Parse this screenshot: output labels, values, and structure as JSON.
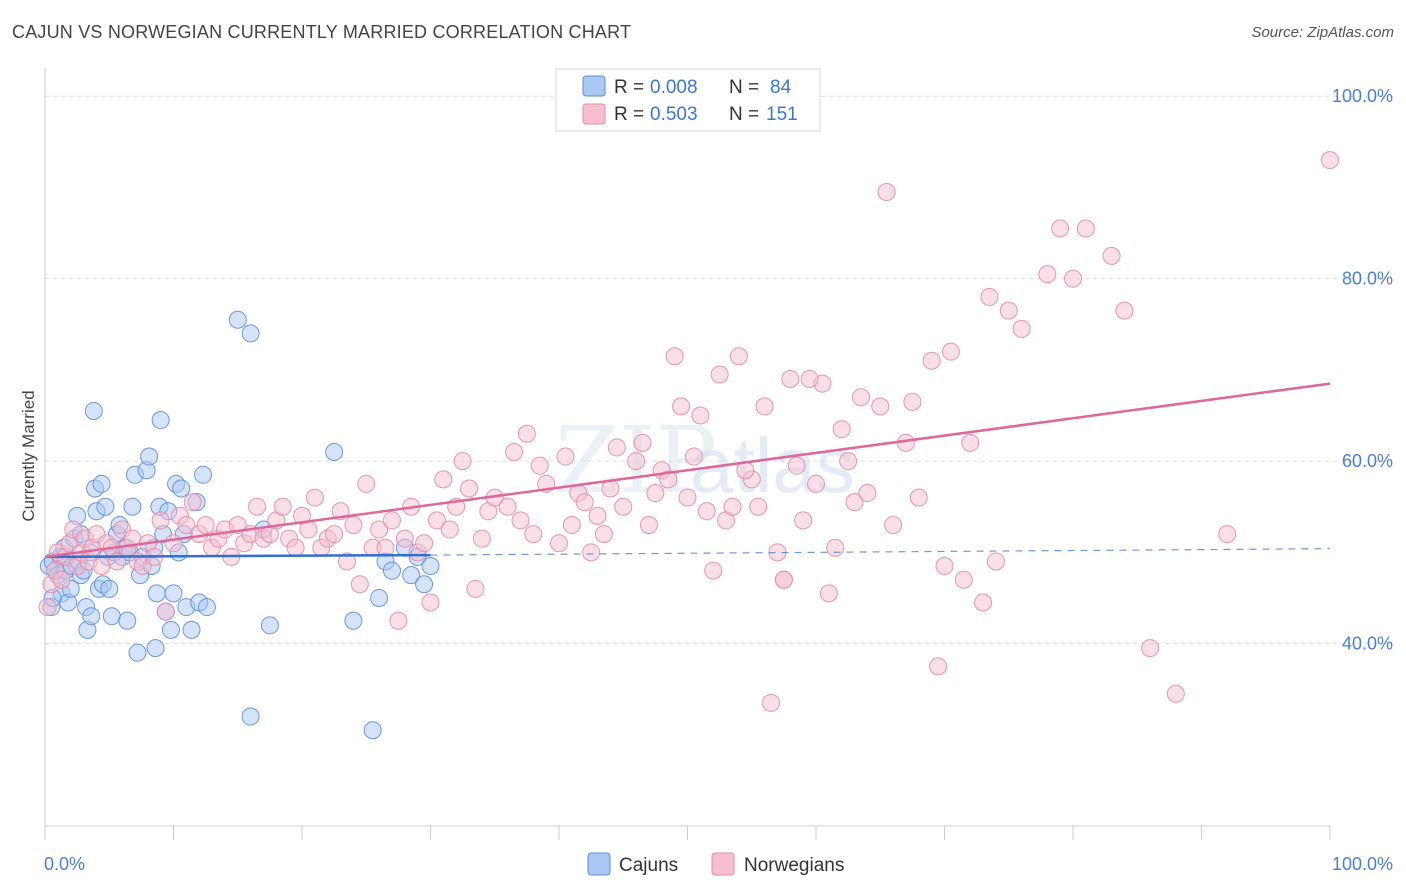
{
  "title": "CAJUN VS NORWEGIAN CURRENTLY MARRIED CORRELATION CHART",
  "source": "Source: ZipAtlas.com",
  "watermark": {
    "zip": "ZIP",
    "atlas": "atlas"
  },
  "colors": {
    "cajun_fill": "#a9c8f3",
    "cajun_stroke": "#5b8fd6",
    "cajun_line": "#2f6fd0",
    "norwegian_fill": "#f6bfd0",
    "norwegian_stroke": "#e58aa8",
    "norwegian_line": "#e0679a",
    "axis_label": "#4a7fd0",
    "grid": "#dddddd"
  },
  "legend": {
    "rows": [
      {
        "r_label": "R =",
        "r_value": "0.008",
        "n_label": "N =",
        "n_value": "84"
      },
      {
        "r_label": "R =",
        "r_value": "0.503",
        "n_label": "N =",
        "n_value": "151"
      }
    ]
  },
  "chart_data": {
    "type": "scatter",
    "title": "CAJUN VS NORWEGIAN CURRENTLY MARRIED CORRELATION CHART",
    "xlabel": "",
    "ylabel": "Currently Married",
    "xlim": [
      0,
      100
    ],
    "ylim": [
      20,
      102
    ],
    "x_tick_labels": [
      "0.0%",
      "100.0%"
    ],
    "y_ticks": [
      {
        "value": 40,
        "label": "40.0%"
      },
      {
        "value": 60,
        "label": "60.0%"
      },
      {
        "value": 80,
        "label": "80.0%"
      },
      {
        "value": 100,
        "label": "100.0%"
      }
    ],
    "grid": true,
    "legend_position": "top-center",
    "series": [
      {
        "name": "Cajuns",
        "r": 0.008,
        "n": 84,
        "trend": {
          "x0": 0,
          "y0": 49.5,
          "x1": 30,
          "y1": 49.7,
          "dashed_to_x": 100,
          "dashed_to_y": 50.4
        },
        "points": [
          [
            0.3,
            48.5
          ],
          [
            0.5,
            44.0
          ],
          [
            0.6,
            49.0
          ],
          [
            0.8,
            48.0
          ],
          [
            1.0,
            47.5
          ],
          [
            1.2,
            49.5
          ],
          [
            1.3,
            45.5
          ],
          [
            1.5,
            50.5
          ],
          [
            1.6,
            48.0
          ],
          [
            1.8,
            44.5
          ],
          [
            2.0,
            46.0
          ],
          [
            2.1,
            48.5
          ],
          [
            2.3,
            51.5
          ],
          [
            2.5,
            54.0
          ],
          [
            2.6,
            49.0
          ],
          [
            2.8,
            47.5
          ],
          [
            3.0,
            48.0
          ],
          [
            3.2,
            44.0
          ],
          [
            3.3,
            41.5
          ],
          [
            3.5,
            50.0
          ],
          [
            3.6,
            43.0
          ],
          [
            3.8,
            65.5
          ],
          [
            3.9,
            57.0
          ],
          [
            4.0,
            54.5
          ],
          [
            4.2,
            46.0
          ],
          [
            4.4,
            57.5
          ],
          [
            4.5,
            46.5
          ],
          [
            4.7,
            55.0
          ],
          [
            4.9,
            49.5
          ],
          [
            5.0,
            46.0
          ],
          [
            5.2,
            43.0
          ],
          [
            5.4,
            50.0
          ],
          [
            5.6,
            52.0
          ],
          [
            5.8,
            53.0
          ],
          [
            6.0,
            49.5
          ],
          [
            6.2,
            50.5
          ],
          [
            6.4,
            42.5
          ],
          [
            6.6,
            50.0
          ],
          [
            6.8,
            55.0
          ],
          [
            7.0,
            58.5
          ],
          [
            7.2,
            39.0
          ],
          [
            7.4,
            47.5
          ],
          [
            7.6,
            49.5
          ],
          [
            7.9,
            59.0
          ],
          [
            8.1,
            60.5
          ],
          [
            8.3,
            48.5
          ],
          [
            8.5,
            50.5
          ],
          [
            8.6,
            39.5
          ],
          [
            8.7,
            45.5
          ],
          [
            8.9,
            55.0
          ],
          [
            9.0,
            64.5
          ],
          [
            9.2,
            52.0
          ],
          [
            9.4,
            43.5
          ],
          [
            9.6,
            54.5
          ],
          [
            9.8,
            41.5
          ],
          [
            10.0,
            45.5
          ],
          [
            10.2,
            57.5
          ],
          [
            10.4,
            50.0
          ],
          [
            10.6,
            57.0
          ],
          [
            10.8,
            52.0
          ],
          [
            11.0,
            44.0
          ],
          [
            11.4,
            41.5
          ],
          [
            11.8,
            55.5
          ],
          [
            12.0,
            44.5
          ],
          [
            12.3,
            58.5
          ],
          [
            12.6,
            44.0
          ],
          [
            15.0,
            75.5
          ],
          [
            16.0,
            74.0
          ],
          [
            16.0,
            32.0
          ],
          [
            17.0,
            52.5
          ],
          [
            17.5,
            42.0
          ],
          [
            22.5,
            61.0
          ],
          [
            24.0,
            42.5
          ],
          [
            25.5,
            30.5
          ],
          [
            26.0,
            45.0
          ],
          [
            26.5,
            49.0
          ],
          [
            27.0,
            48.0
          ],
          [
            28.0,
            50.5
          ],
          [
            28.5,
            47.5
          ],
          [
            29.0,
            49.5
          ],
          [
            29.5,
            46.5
          ],
          [
            30.0,
            48.5
          ],
          [
            0.6,
            45.0
          ],
          [
            2.8,
            52.0
          ]
        ]
      },
      {
        "name": "Norwegians",
        "r": 0.503,
        "n": 151,
        "trend": {
          "x0": 0,
          "y0": 49.5,
          "x1": 100,
          "y1": 68.5
        },
        "points": [
          [
            0.2,
            44.0
          ],
          [
            0.5,
            46.5
          ],
          [
            0.8,
            48.0
          ],
          [
            1.0,
            50.0
          ],
          [
            1.3,
            47.0
          ],
          [
            1.6,
            49.5
          ],
          [
            1.9,
            51.0
          ],
          [
            2.2,
            52.5
          ],
          [
            2.5,
            48.5
          ],
          [
            2.8,
            50.0
          ],
          [
            3.1,
            51.5
          ],
          [
            3.4,
            49.0
          ],
          [
            3.7,
            50.5
          ],
          [
            4.0,
            52.0
          ],
          [
            4.4,
            48.5
          ],
          [
            4.8,
            51.0
          ],
          [
            5.2,
            50.5
          ],
          [
            5.6,
            49.0
          ],
          [
            6.0,
            52.5
          ],
          [
            6.4,
            50.5
          ],
          [
            6.8,
            51.5
          ],
          [
            7.2,
            49.0
          ],
          [
            7.6,
            48.5
          ],
          [
            8.0,
            51.0
          ],
          [
            8.5,
            49.5
          ],
          [
            9.0,
            53.5
          ],
          [
            9.4,
            43.5
          ],
          [
            10.0,
            51.0
          ],
          [
            10.5,
            54.0
          ],
          [
            11.0,
            53.0
          ],
          [
            11.5,
            55.5
          ],
          [
            12.0,
            52.0
          ],
          [
            12.5,
            53.0
          ],
          [
            13.0,
            50.5
          ],
          [
            13.5,
            51.5
          ],
          [
            14.0,
            52.5
          ],
          [
            14.5,
            49.5
          ],
          [
            15.0,
            53.0
          ],
          [
            15.5,
            51.0
          ],
          [
            16.0,
            52.0
          ],
          [
            16.5,
            55.0
          ],
          [
            17.0,
            51.5
          ],
          [
            17.5,
            52.0
          ],
          [
            18.0,
            53.5
          ],
          [
            18.5,
            55.0
          ],
          [
            19.0,
            51.5
          ],
          [
            19.5,
            50.5
          ],
          [
            20.0,
            54.0
          ],
          [
            20.5,
            52.5
          ],
          [
            21.0,
            56.0
          ],
          [
            21.5,
            50.5
          ],
          [
            22.0,
            51.5
          ],
          [
            22.5,
            52.0
          ],
          [
            23.0,
            54.5
          ],
          [
            23.5,
            49.0
          ],
          [
            24.0,
            53.0
          ],
          [
            24.5,
            46.5
          ],
          [
            25.0,
            57.5
          ],
          [
            25.5,
            50.5
          ],
          [
            26.0,
            52.5
          ],
          [
            26.5,
            50.5
          ],
          [
            27.0,
            53.5
          ],
          [
            27.5,
            42.5
          ],
          [
            28.0,
            51.5
          ],
          [
            28.5,
            55.0
          ],
          [
            29.0,
            50.0
          ],
          [
            29.5,
            51.0
          ],
          [
            30.0,
            44.5
          ],
          [
            30.5,
            53.5
          ],
          [
            31.0,
            58.0
          ],
          [
            31.5,
            52.5
          ],
          [
            32.0,
            55.0
          ],
          [
            32.5,
            60.0
          ],
          [
            33.0,
            57.0
          ],
          [
            34.0,
            51.5
          ],
          [
            34.5,
            54.5
          ],
          [
            35.0,
            56.0
          ],
          [
            36.0,
            55.0
          ],
          [
            36.5,
            61.0
          ],
          [
            37.0,
            53.5
          ],
          [
            38.0,
            52.0
          ],
          [
            38.5,
            59.5
          ],
          [
            39.0,
            57.5
          ],
          [
            40.0,
            51.0
          ],
          [
            40.5,
            60.5
          ],
          [
            41.0,
            53.0
          ],
          [
            41.5,
            56.5
          ],
          [
            42.0,
            55.5
          ],
          [
            42.5,
            50.0
          ],
          [
            43.0,
            54.0
          ],
          [
            43.5,
            52.0
          ],
          [
            44.0,
            57.0
          ],
          [
            44.5,
            61.5
          ],
          [
            45.0,
            55.0
          ],
          [
            46.0,
            60.0
          ],
          [
            46.5,
            62.0
          ],
          [
            47.0,
            53.0
          ],
          [
            47.5,
            56.5
          ],
          [
            48.0,
            59.0
          ],
          [
            48.5,
            58.0
          ],
          [
            49.0,
            71.5
          ],
          [
            49.5,
            66.0
          ],
          [
            50.0,
            56.0
          ],
          [
            50.5,
            60.5
          ],
          [
            51.0,
            65.0
          ],
          [
            51.5,
            54.5
          ],
          [
            52.0,
            48.0
          ],
          [
            52.5,
            69.5
          ],
          [
            53.0,
            53.5
          ],
          [
            53.5,
            55.0
          ],
          [
            54.0,
            71.5
          ],
          [
            55.0,
            58.0
          ],
          [
            55.5,
            55.0
          ],
          [
            56.0,
            66.0
          ],
          [
            56.5,
            33.5
          ],
          [
            57.0,
            50.0
          ],
          [
            57.5,
            47.0
          ],
          [
            58.0,
            69.0
          ],
          [
            58.5,
            59.5
          ],
          [
            59.0,
            53.5
          ],
          [
            60.0,
            57.5
          ],
          [
            60.5,
            68.5
          ],
          [
            61.0,
            45.5
          ],
          [
            62.0,
            63.5
          ],
          [
            62.5,
            60.0
          ],
          [
            63.0,
            55.5
          ],
          [
            63.5,
            67.0
          ],
          [
            64.0,
            56.5
          ],
          [
            65.0,
            66.0
          ],
          [
            65.5,
            89.5
          ],
          [
            66.0,
            53.0
          ],
          [
            67.0,
            62.0
          ],
          [
            68.0,
            56.0
          ],
          [
            69.0,
            71.0
          ],
          [
            70.0,
            48.5
          ],
          [
            70.5,
            72.0
          ],
          [
            71.5,
            47.0
          ],
          [
            72.0,
            62.0
          ],
          [
            73.0,
            44.5
          ],
          [
            73.5,
            78.0
          ],
          [
            74.0,
            49.0
          ],
          [
            75.0,
            76.5
          ],
          [
            76.0,
            74.5
          ],
          [
            78.0,
            80.5
          ],
          [
            79.0,
            85.5
          ],
          [
            80.0,
            80.0
          ],
          [
            81.0,
            85.5
          ],
          [
            83.0,
            82.5
          ],
          [
            84.0,
            76.5
          ],
          [
            86.0,
            39.5
          ],
          [
            88.0,
            34.5
          ],
          [
            92.0,
            52.0
          ],
          [
            100.0,
            93.0
          ],
          [
            69.5,
            37.5
          ],
          [
            67.5,
            66.5
          ],
          [
            59.5,
            69.0
          ],
          [
            61.5,
            50.5
          ],
          [
            57.5,
            47.0
          ],
          [
            54.5,
            59.0
          ],
          [
            37.5,
            63.0
          ],
          [
            33.5,
            46.0
          ]
        ]
      }
    ]
  },
  "bottom_legend": [
    {
      "label": "Cajuns"
    },
    {
      "label": "Norwegians"
    }
  ]
}
